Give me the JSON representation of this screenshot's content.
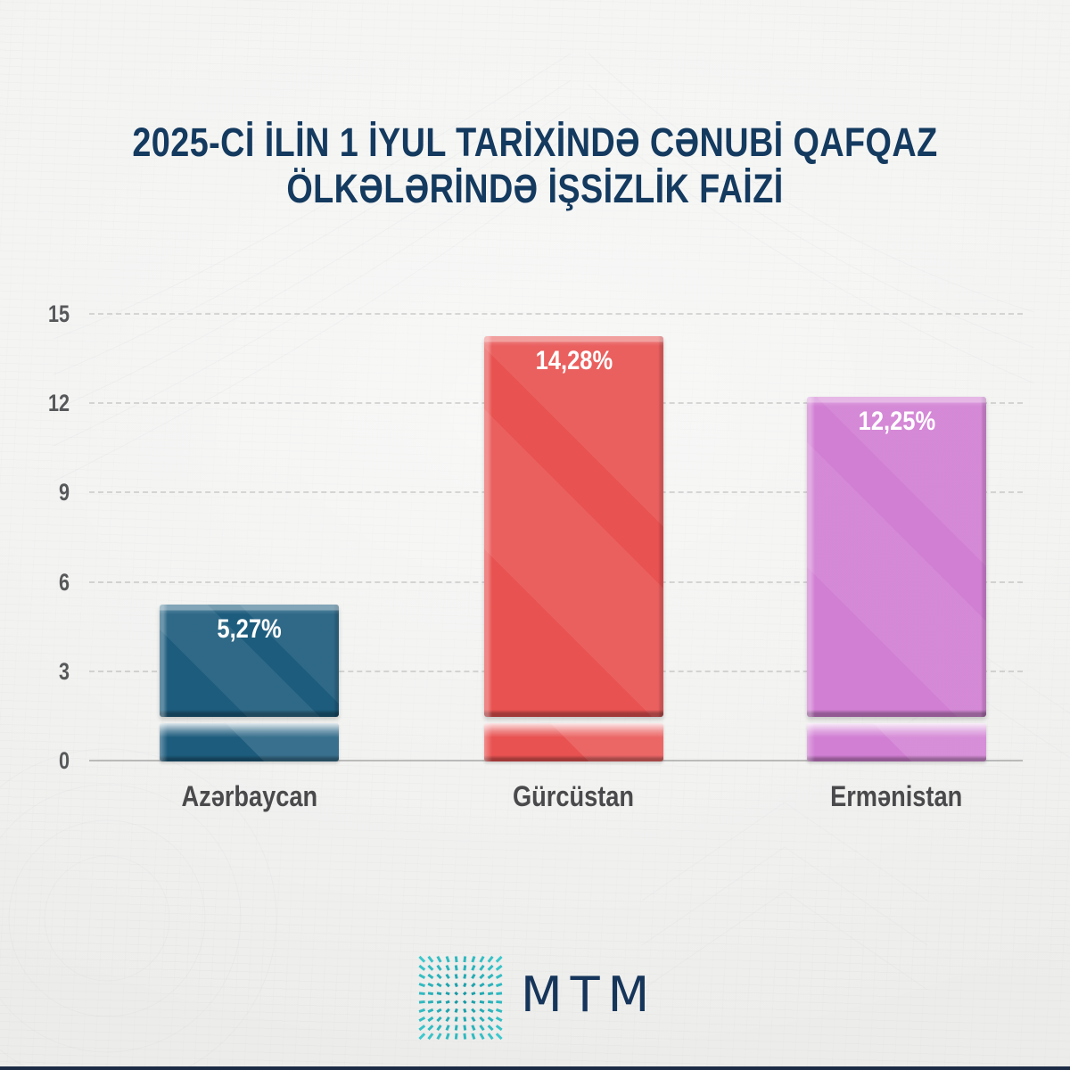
{
  "page": {
    "background_color": "#f1f1ef",
    "footer_strip_color": "#1c2b45"
  },
  "title": {
    "line1": "2025-Cİ İLİN 1 İYUL TARİXİNDƏ CƏNUBİ QAFQAZ",
    "line2": "ÖLKƏLƏRİNDƏ İŞSİZLİK FAİZİ",
    "color": "#143a5f"
  },
  "chart_data": {
    "type": "bar",
    "title": "2025-Cİ İLİN 1 İYUL TARİXİNDƏ CƏNUBİ QAFQAZ ÖLKƏLƏRİNDƏ İŞSİZLİK FAİZİ",
    "categories": [
      "Azərbaycan",
      "Gürcüstan",
      "Ermənistan"
    ],
    "values": [
      5.27,
      14.28,
      12.25
    ],
    "value_labels": [
      "5,27%",
      "14,28%",
      "12,25%"
    ],
    "bar_colors": [
      "#1d5c7d",
      "#e85251",
      "#d17fd3"
    ],
    "xlabel": "",
    "ylabel": "",
    "ylim": [
      0,
      15
    ],
    "yticks": [
      0,
      3,
      6,
      9,
      12,
      15
    ],
    "grid": "horizontal dashed",
    "legend": "none",
    "value_label_color": "#ffffff",
    "tick_label_color": "#57585a",
    "category_label_color": "#4a4a4c"
  },
  "logo": {
    "text": "MTM",
    "text_color": "#16355a",
    "mark_color_inner": "#11929f",
    "mark_color_outer": "#3cc9cd"
  }
}
